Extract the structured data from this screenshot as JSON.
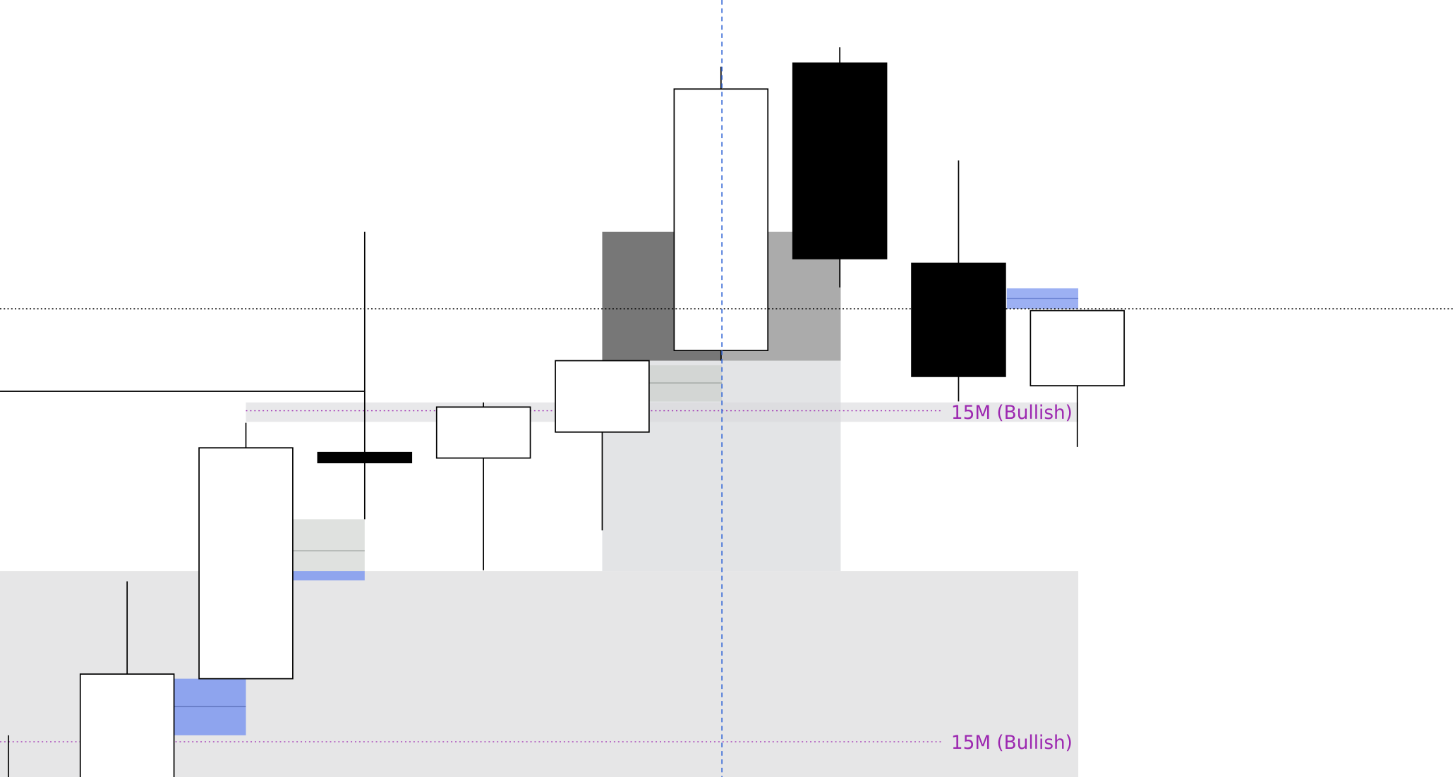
{
  "chart_data": {
    "type": "candlestick",
    "categories": [
      null,
      null,
      null,
      null,
      null,
      null,
      null,
      null,
      null,
      null
    ],
    "open": [
      -20,
      -20,
      106,
      350,
      344,
      372,
      460,
      770,
      554,
      422
    ],
    "high": [
      45,
      211,
      382,
      588,
      404,
      449,
      766,
      787,
      665,
      503
    ],
    "low": [
      -40,
      -40,
      106,
      278,
      223,
      266,
      449,
      528,
      405,
      356
    ],
    "close": [
      -30,
      111,
      355,
      339,
      399,
      449,
      742,
      559,
      432,
      503
    ],
    "up_color": "#ffffff",
    "down_color": "#000000",
    "ylim": [
      0,
      838
    ],
    "annotations": [
      "15M (Bullish)",
      "15M (Bullish)"
    ]
  }
}
